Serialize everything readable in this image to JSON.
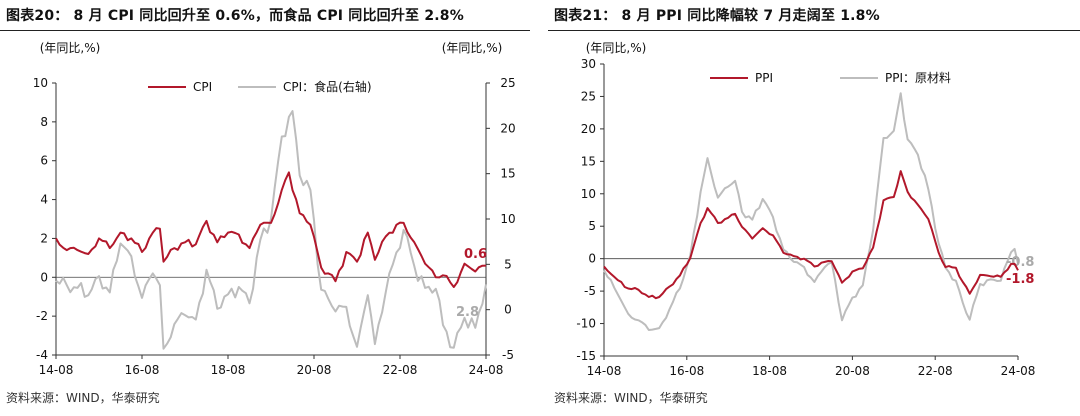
{
  "charts": [
    {
      "title": "图表20：  8 月 CPI 同比回升至 0.6%，而食品 CPI 同比回升至 2.8%",
      "source": "资料来源：WIND，华泰研究",
      "chart_data": {
        "type": "line",
        "unit_left": "(年同比,%)",
        "unit_right": "(年同比,%)",
        "ylim_left": [
          -4,
          10
        ],
        "yticks_left": [
          -4,
          -2,
          0,
          2,
          4,
          6,
          8,
          10
        ],
        "ylim_right": [
          -5,
          25
        ],
        "yticks_right": [
          -5,
          0,
          5,
          10,
          15,
          20,
          25
        ],
        "x_start": "2014-08",
        "x_end": "2024-08",
        "xtick_labels": [
          "14-08",
          "16-08",
          "18-08",
          "20-08",
          "22-08",
          "24-08"
        ],
        "legend_position": "top",
        "series": [
          {
            "name": "CPI",
            "axis": "left",
            "color": "#b2182b",
            "end_label": "0.6",
            "anchors": [
              [
                "2014-08",
                2.0
              ],
              [
                "2014-11",
                1.4
              ],
              [
                "2015-02",
                1.4
              ],
              [
                "2015-05",
                1.2
              ],
              [
                "2015-08",
                2.0
              ],
              [
                "2015-11",
                1.5
              ],
              [
                "2016-02",
                2.3
              ],
              [
                "2016-05",
                2.0
              ],
              [
                "2016-08",
                1.3
              ],
              [
                "2016-11",
                2.3
              ],
              [
                "2017-01",
                2.5
              ],
              [
                "2017-02",
                0.8
              ],
              [
                "2017-05",
                1.5
              ],
              [
                "2017-08",
                1.8
              ],
              [
                "2017-11",
                1.7
              ],
              [
                "2018-02",
                2.9
              ],
              [
                "2018-05",
                1.8
              ],
              [
                "2018-08",
                2.3
              ],
              [
                "2018-11",
                2.2
              ],
              [
                "2019-02",
                1.5
              ],
              [
                "2019-05",
                2.7
              ],
              [
                "2019-08",
                2.8
              ],
              [
                "2019-11",
                4.5
              ],
              [
                "2020-01",
                5.4
              ],
              [
                "2020-04",
                3.3
              ],
              [
                "2020-07",
                2.7
              ],
              [
                "2020-10",
                0.5
              ],
              [
                "2020-12",
                0.2
              ],
              [
                "2021-02",
                -0.2
              ],
              [
                "2021-05",
                1.3
              ],
              [
                "2021-08",
                0.8
              ],
              [
                "2021-11",
                2.3
              ],
              [
                "2022-01",
                0.9
              ],
              [
                "2022-04",
                2.1
              ],
              [
                "2022-07",
                2.7
              ],
              [
                "2022-09",
                2.8
              ],
              [
                "2022-12",
                1.8
              ],
              [
                "2023-03",
                0.7
              ],
              [
                "2023-06",
                0.0
              ],
              [
                "2023-08",
                0.1
              ],
              [
                "2023-11",
                -0.5
              ],
              [
                "2024-02",
                0.7
              ],
              [
                "2024-05",
                0.3
              ],
              [
                "2024-08",
                0.6
              ]
            ]
          },
          {
            "name": "CPI：食品(右轴)",
            "axis": "right",
            "color": "#bdbdbd",
            "end_label": "2.8",
            "anchors": [
              [
                "2014-08",
                3.2
              ],
              [
                "2014-11",
                2.7
              ],
              [
                "2015-02",
                2.4
              ],
              [
                "2015-05",
                1.6
              ],
              [
                "2015-08",
                3.7
              ],
              [
                "2015-11",
                1.9
              ],
              [
                "2016-02",
                7.3
              ],
              [
                "2016-05",
                5.9
              ],
              [
                "2016-08",
                1.3
              ],
              [
                "2016-11",
                4.0
              ],
              [
                "2017-01",
                2.7
              ],
              [
                "2017-02",
                -4.3
              ],
              [
                "2017-05",
                -1.6
              ],
              [
                "2017-08",
                -0.6
              ],
              [
                "2017-11",
                -1.1
              ],
              [
                "2018-02",
                4.4
              ],
              [
                "2018-05",
                0.1
              ],
              [
                "2018-08",
                1.7
              ],
              [
                "2018-11",
                2.5
              ],
              [
                "2019-02",
                0.7
              ],
              [
                "2019-05",
                7.7
              ],
              [
                "2019-08",
                10.0
              ],
              [
                "2019-11",
                19.1
              ],
              [
                "2020-02",
                21.9
              ],
              [
                "2020-04",
                14.8
              ],
              [
                "2020-07",
                13.2
              ],
              [
                "2020-10",
                2.2
              ],
              [
                "2020-12",
                1.2
              ],
              [
                "2021-02",
                -0.2
              ],
              [
                "2021-05",
                0.3
              ],
              [
                "2021-08",
                -4.1
              ],
              [
                "2021-11",
                1.6
              ],
              [
                "2022-01",
                -3.8
              ],
              [
                "2022-04",
                1.9
              ],
              [
                "2022-07",
                6.3
              ],
              [
                "2022-09",
                8.8
              ],
              [
                "2022-12",
                4.8
              ],
              [
                "2023-03",
                2.4
              ],
              [
                "2023-06",
                2.3
              ],
              [
                "2023-08",
                -1.7
              ],
              [
                "2023-11",
                -4.2
              ],
              [
                "2024-02",
                -0.9
              ],
              [
                "2024-05",
                -2.0
              ],
              [
                "2024-08",
                2.8
              ]
            ]
          }
        ]
      }
    },
    {
      "title": "图表21：  8 月 PPI 同比降幅较 7 月走阔至 1.8%",
      "source": "资料来源：WIND，华泰研究",
      "chart_data": {
        "type": "line",
        "unit_left": "(年同比,%)",
        "ylim_left": [
          -15,
          30
        ],
        "yticks_left": [
          -15,
          -10,
          -5,
          0,
          5,
          10,
          15,
          20,
          25,
          30
        ],
        "x_start": "2014-08",
        "x_end": "2024-08",
        "xtick_labels": [
          "14-08",
          "16-08",
          "18-08",
          "20-08",
          "22-08",
          "24-08"
        ],
        "legend_position": "top",
        "series": [
          {
            "name": "PPI",
            "axis": "left",
            "color": "#b2182b",
            "end_label": "-1.8",
            "anchors": [
              [
                "2014-08",
                -1.2
              ],
              [
                "2014-12",
                -3.3
              ],
              [
                "2015-03",
                -4.6
              ],
              [
                "2015-06",
                -4.8
              ],
              [
                "2015-09",
                -5.9
              ],
              [
                "2015-12",
                -5.9
              ],
              [
                "2016-03",
                -4.3
              ],
              [
                "2016-06",
                -2.6
              ],
              [
                "2016-09",
                0.1
              ],
              [
                "2016-12",
                5.5
              ],
              [
                "2017-02",
                7.8
              ],
              [
                "2017-05",
                5.5
              ],
              [
                "2017-08",
                6.3
              ],
              [
                "2017-10",
                6.9
              ],
              [
                "2017-12",
                4.9
              ],
              [
                "2018-03",
                3.1
              ],
              [
                "2018-06",
                4.7
              ],
              [
                "2018-09",
                3.6
              ],
              [
                "2018-12",
                0.9
              ],
              [
                "2019-03",
                0.4
              ],
              [
                "2019-06",
                0.0
              ],
              [
                "2019-09",
                -1.2
              ],
              [
                "2019-12",
                -0.5
              ],
              [
                "2020-02",
                -0.4
              ],
              [
                "2020-05",
                -3.7
              ],
              [
                "2020-08",
                -2.0
              ],
              [
                "2020-11",
                -1.5
              ],
              [
                "2021-02",
                1.7
              ],
              [
                "2021-05",
                9.0
              ],
              [
                "2021-08",
                9.5
              ],
              [
                "2021-10",
                13.5
              ],
              [
                "2021-12",
                10.3
              ],
              [
                "2022-03",
                8.3
              ],
              [
                "2022-06",
                6.1
              ],
              [
                "2022-09",
                0.9
              ],
              [
                "2022-11",
                -1.3
              ],
              [
                "2023-02",
                -1.4
              ],
              [
                "2023-04",
                -3.6
              ],
              [
                "2023-06",
                -5.4
              ],
              [
                "2023-09",
                -2.5
              ],
              [
                "2023-12",
                -2.7
              ],
              [
                "2024-03",
                -2.8
              ],
              [
                "2024-06",
                -0.8
              ],
              [
                "2024-07",
                -0.8
              ],
              [
                "2024-08",
                -1.8
              ]
            ]
          },
          {
            "name": "PPI：原材料",
            "axis": "left",
            "color": "#bdbdbd",
            "end_label": "-0.8",
            "anchors": [
              [
                "2014-08",
                -1.8
              ],
              [
                "2014-12",
                -5.5
              ],
              [
                "2015-03",
                -8.5
              ],
              [
                "2015-06",
                -9.5
              ],
              [
                "2015-09",
                -11.0
              ],
              [
                "2015-12",
                -10.7
              ],
              [
                "2016-03",
                -7.8
              ],
              [
                "2016-06",
                -4.6
              ],
              [
                "2016-09",
                0.5
              ],
              [
                "2016-12",
                10.3
              ],
              [
                "2017-02",
                15.5
              ],
              [
                "2017-05",
                9.4
              ],
              [
                "2017-08",
                11.1
              ],
              [
                "2017-10",
                12.0
              ],
              [
                "2017-12",
                7.2
              ],
              [
                "2018-03",
                6.0
              ],
              [
                "2018-06",
                9.2
              ],
              [
                "2018-09",
                6.4
              ],
              [
                "2018-12",
                1.4
              ],
              [
                "2019-03",
                -0.5
              ],
              [
                "2019-06",
                -1.3
              ],
              [
                "2019-09",
                -3.6
              ],
              [
                "2019-12",
                -1.3
              ],
              [
                "2020-02",
                -0.6
              ],
              [
                "2020-05",
                -9.5
              ],
              [
                "2020-08",
                -6.0
              ],
              [
                "2020-11",
                -4.1
              ],
              [
                "2021-02",
                4.4
              ],
              [
                "2021-05",
                18.6
              ],
              [
                "2021-08",
                19.7
              ],
              [
                "2021-10",
                25.5
              ],
              [
                "2021-12",
                18.4
              ],
              [
                "2022-03",
                16.0
              ],
              [
                "2022-06",
                10.7
              ],
              [
                "2022-09",
                2.3
              ],
              [
                "2022-11",
                -1.4
              ],
              [
                "2023-02",
                -3.4
              ],
              [
                "2023-04",
                -6.8
              ],
              [
                "2023-06",
                -9.4
              ],
              [
                "2023-09",
                -3.9
              ],
              [
                "2023-12",
                -3.2
              ],
              [
                "2024-03",
                -3.4
              ],
              [
                "2024-06",
                1.0
              ],
              [
                "2024-07",
                1.5
              ],
              [
                "2024-08",
                -0.8
              ]
            ]
          }
        ]
      }
    }
  ]
}
